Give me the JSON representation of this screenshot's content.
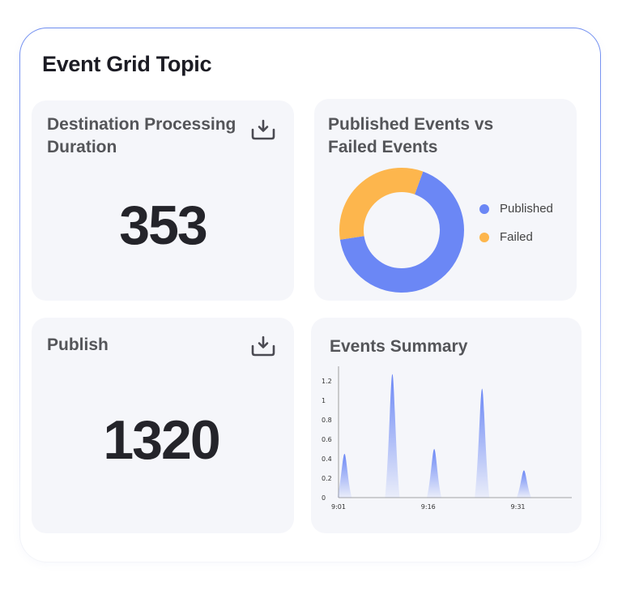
{
  "title": "Event Grid Topic",
  "cards": {
    "destination": {
      "title_line1": "Destination Processing",
      "title_line2": "Duration",
      "value": "353",
      "icon": "download-icon"
    },
    "publish": {
      "title": "Publish",
      "value": "1320",
      "icon": "download-icon"
    }
  },
  "donut": {
    "title_line1": "Published Events vs",
    "title_line2": "Failed Events",
    "legend": [
      {
        "label": "Published",
        "color": "#6b87f5"
      },
      {
        "label": "Failed",
        "color": "#fdb64d"
      }
    ]
  },
  "summary": {
    "title": "Events Summary"
  },
  "chart_data": [
    {
      "type": "pie",
      "title": "Published Events vs Failed Events",
      "labels": [
        "Published",
        "Failed"
      ],
      "values": [
        67,
        33
      ],
      "colors": [
        "#6b87f5",
        "#fdb64d"
      ],
      "legend": "right"
    },
    {
      "type": "area",
      "title": "Events Summary",
      "x_ticks": [
        "9:01",
        "9:16",
        "9:31"
      ],
      "y_ticks": [
        "0",
        "0.2",
        "0.4",
        "0.6",
        "0.8",
        "1",
        "1.2"
      ],
      "ylim": [
        0,
        1.3
      ],
      "peaks": [
        {
          "x": "9:02",
          "value": 0.45
        },
        {
          "x": "9:10",
          "value": 1.27
        },
        {
          "x": "9:17",
          "value": 0.5
        },
        {
          "x": "9:25",
          "value": 1.12
        },
        {
          "x": "9:32",
          "value": 0.28
        }
      ],
      "color": "#6b87f5",
      "grid": false,
      "legend": "none"
    }
  ]
}
